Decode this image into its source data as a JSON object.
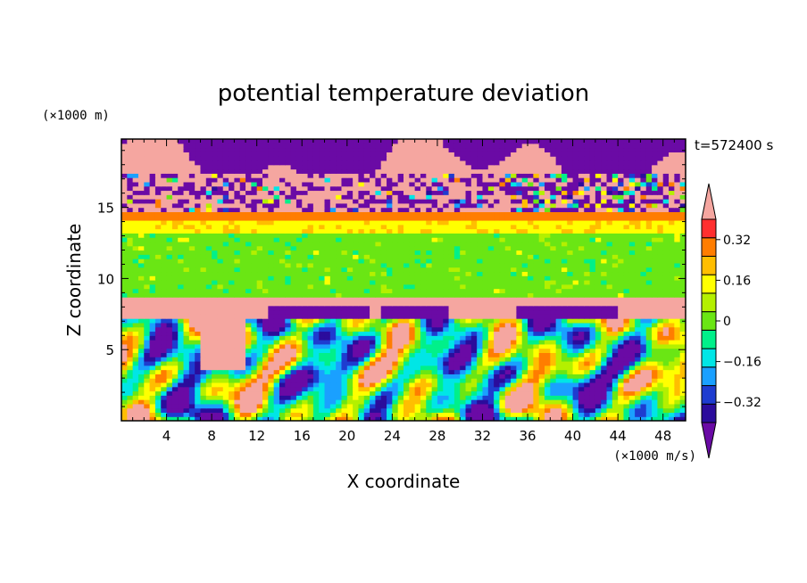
{
  "chart_data": {
    "type": "heatmap",
    "title": "potential temperature deviation",
    "xlabel": "X coordinate",
    "ylabel": "Z coordinate",
    "x_unit": "(×1000 m/s)",
    "y_unit": "(×1000 m)",
    "time_label": "t=572400 s",
    "xlim": [
      0,
      50
    ],
    "ylim": [
      0,
      19.8
    ],
    "x_ticks": [
      4,
      8,
      12,
      16,
      20,
      24,
      28,
      32,
      36,
      40,
      44,
      48
    ],
    "y_ticks": [
      5,
      10,
      15
    ],
    "colorbar": {
      "levels": [
        -0.4,
        -0.32,
        -0.24,
        -0.16,
        -0.08,
        0,
        0.08,
        0.16,
        0.24,
        0.32,
        0.4
      ],
      "tick_labels": [
        "0.32",
        "0.16",
        "0",
        "−0.16",
        "−0.32"
      ],
      "tick_values": [
        0.32,
        0.16,
        0,
        -0.16,
        -0.32
      ],
      "colors": [
        "#6a0aa5",
        "#2b0c9c",
        "#1e3cd0",
        "#1aa0ff",
        "#00e6e6",
        "#00f08a",
        "#6ae614",
        "#b4f000",
        "#ffff00",
        "#ffbe00",
        "#ff7d00",
        "#ff2f2f",
        "#f5a6a0"
      ],
      "extend": "both"
    },
    "bands": [
      {
        "z": [
          17.5,
          19.8
        ],
        "value": "mixed −0.4 / +0.4"
      },
      {
        "z": [
          14.2,
          17.5
        ],
        "value": "mixed noisy"
      },
      {
        "z": [
          8.8,
          14.2
        ],
        "value": "≈ 0 to 0.08"
      },
      {
        "z": [
          7.3,
          8.8
        ],
        "value": "> 0.4"
      },
      {
        "z": [
          0,
          7.3
        ],
        "value": "turbulent −0.4 to 0.4"
      }
    ]
  }
}
